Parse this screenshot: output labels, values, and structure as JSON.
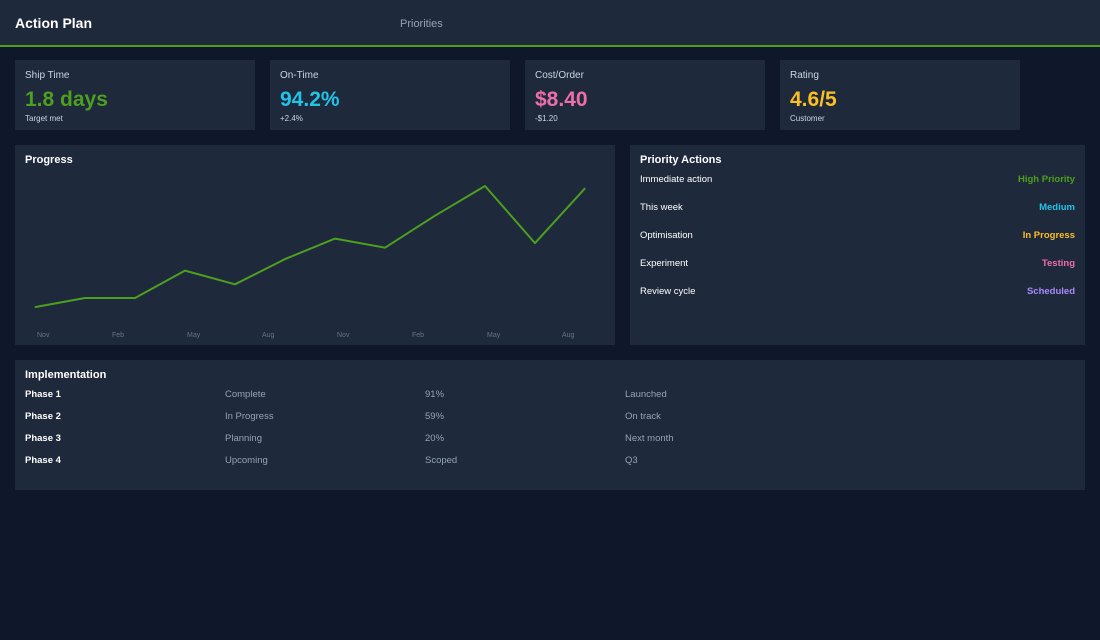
{
  "header": {
    "title": "Action Plan",
    "tab": "Priorities",
    "accent_color": "#4d9f1f"
  },
  "kpis": [
    {
      "label": "Ship Time",
      "value": "1.8 days",
      "sub": "Target met",
      "color": "#4d9f1f"
    },
    {
      "label": "On-Time",
      "value": "94.2%",
      "sub": "+2.4%",
      "color": "#22c3e6"
    },
    {
      "label": "Cost/Order",
      "value": "$8.40",
      "sub": "-$1.20",
      "color": "#ec6fa8"
    },
    {
      "label": "Rating",
      "value": "4.6/5",
      "sub": "Customer",
      "color": "#fbbf24"
    }
  ],
  "progress": {
    "title": "Progress"
  },
  "chart_data": {
    "type": "line",
    "title": "Progress",
    "categories": [
      "Nov",
      "Feb",
      "May",
      "Aug",
      "Nov",
      "Feb",
      "May",
      "Aug"
    ],
    "x": [
      0,
      1,
      2,
      3,
      4,
      5,
      6,
      7,
      8,
      9,
      10,
      11
    ],
    "values": [
      10,
      14,
      14,
      26,
      20,
      31,
      40,
      36,
      50,
      63,
      38,
      62
    ],
    "ylim": [
      0,
      70
    ],
    "grid": false,
    "series_color": "#4d9f1f",
    "xlabel": "",
    "ylabel": ""
  },
  "priority": {
    "title": "Priority Actions",
    "items": [
      {
        "label": "Immediate action",
        "badge": "High Priority",
        "color": "#4d9f1f"
      },
      {
        "label": "This week",
        "badge": "Medium",
        "color": "#22c3e6"
      },
      {
        "label": "Optimisation",
        "badge": "In Progress",
        "color": "#fbbf24"
      },
      {
        "label": "Experiment",
        "badge": "Testing",
        "color": "#ec6fa8"
      },
      {
        "label": "Review cycle",
        "badge": "Scheduled",
        "color": "#a78bfa"
      }
    ]
  },
  "implementation": {
    "title": "Implementation",
    "rows": [
      {
        "phase": "Phase 1",
        "status": "Complete",
        "pct": "91%",
        "note": "Launched"
      },
      {
        "phase": "Phase 2",
        "status": "In Progress",
        "pct": "59%",
        "note": "On track"
      },
      {
        "phase": "Phase 3",
        "status": "Planning",
        "pct": "20%",
        "note": "Next month"
      },
      {
        "phase": "Phase 4",
        "status": "Upcoming",
        "pct": "Scoped",
        "note": "Q3"
      }
    ]
  }
}
